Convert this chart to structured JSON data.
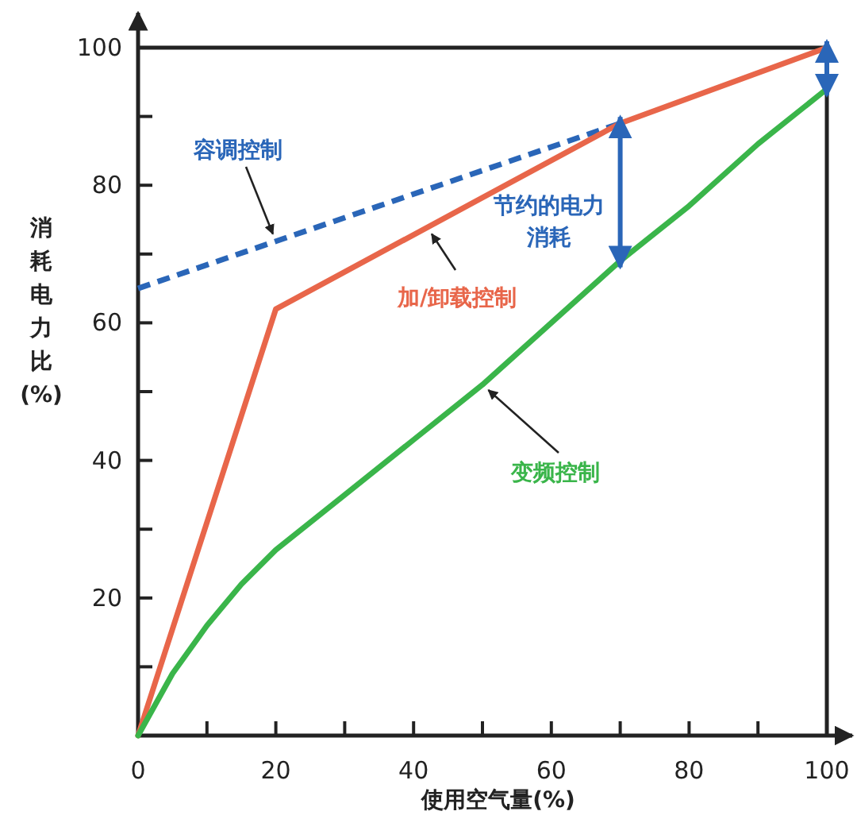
{
  "chart_data": {
    "type": "line",
    "xlabel": "使用空气量(%)",
    "ylabel": "消耗电力比(%)",
    "xlim": [
      0,
      100
    ],
    "ylim": [
      0,
      100
    ],
    "xticks": [
      0,
      {
        "value": 10,
        "label": null
      },
      20,
      {
        "value": 30,
        "label": null
      },
      40,
      {
        "value": 50,
        "label": null
      },
      60,
      {
        "value": 70,
        "label": null
      },
      80,
      {
        "value": 90,
        "label": null
      },
      100
    ],
    "yticks": [
      {
        "value": 10,
        "label": null
      },
      20,
      {
        "value": 30,
        "label": null
      },
      40,
      {
        "value": 50,
        "label": null
      },
      60,
      {
        "value": 70,
        "label": null
      },
      80,
      {
        "value": 90,
        "label": null
      },
      100
    ],
    "grid": false,
    "marker": "none",
    "series": [
      {
        "name": "容调控制",
        "color": "#2a66b8",
        "line_style": "dashed",
        "x": [
          0,
          70
        ],
        "values": [
          65,
          89
        ]
      },
      {
        "name": "加/卸载控制",
        "color": "#e8664a",
        "line_style": "solid",
        "x": [
          0,
          20,
          70,
          100
        ],
        "values": [
          0,
          62,
          89,
          100
        ]
      },
      {
        "name": "变频控制",
        "color": "#3ab54a",
        "line_style": "solid",
        "x": [
          0,
          5,
          10,
          15,
          20,
          30,
          40,
          50,
          60,
          70,
          80,
          90,
          100
        ],
        "values": [
          0,
          9,
          16,
          22,
          27,
          35,
          43,
          51,
          60,
          69,
          77,
          86,
          94
        ]
      }
    ],
    "annotations": [
      "节约的电力消耗"
    ]
  }
}
